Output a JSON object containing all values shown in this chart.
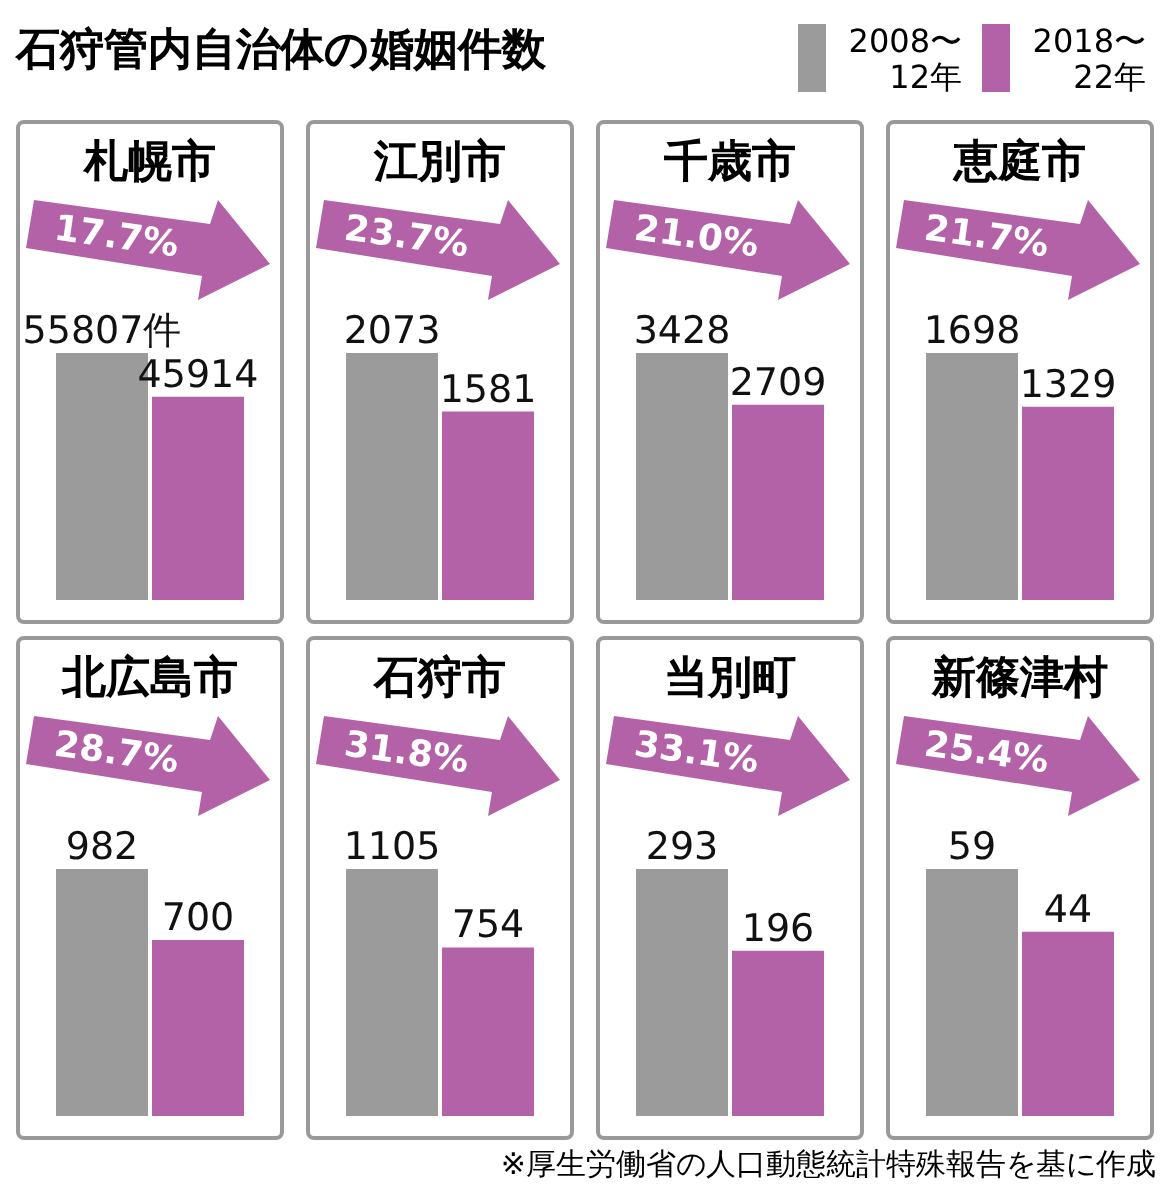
{
  "chart_data": [
    {
      "type": "other",
      "title": "石狩管内自治体の婚姻件数",
      "annotations": [
        "※厚生労働省の人口動態統計特殊報告を基に作成"
      ]
    },
    {
      "type": "bar",
      "title": "札幌市",
      "categories": [
        null
      ],
      "legend": "top right",
      "data_labels": true,
      "annotations": [
        "17.7%"
      ],
      "series": [
        {
          "name": "2008〜12年",
          "color": "#9b9b9b",
          "values": [
            55807
          ],
          "value_labels": [
            "55807件"
          ]
        },
        {
          "name": "2018〜22年",
          "color": "#b462a8",
          "values": [
            45914
          ]
        }
      ]
    },
    {
      "type": "bar",
      "title": "江別市",
      "categories": [
        null
      ],
      "data_labels": true,
      "annotations": [
        "23.7%"
      ],
      "series": [
        {
          "color": "#9b9b9b",
          "values": [
            2073
          ]
        },
        {
          "color": "#b462a8",
          "values": [
            1581
          ]
        }
      ]
    },
    {
      "type": "bar",
      "title": "千歳市",
      "categories": [
        null
      ],
      "data_labels": true,
      "annotations": [
        "21.0%"
      ],
      "series": [
        {
          "color": "#9b9b9b",
          "values": [
            3428
          ]
        },
        {
          "color": "#b462a8",
          "values": [
            2709
          ]
        }
      ]
    },
    {
      "type": "bar",
      "title": "恵庭市",
      "categories": [
        null
      ],
      "data_labels": true,
      "annotations": [
        "21.7%"
      ],
      "series": [
        {
          "color": "#9b9b9b",
          "values": [
            1698
          ]
        },
        {
          "color": "#b462a8",
          "values": [
            1329
          ]
        }
      ]
    },
    {
      "type": "bar",
      "title": "北広島市",
      "categories": [
        null
      ],
      "data_labels": true,
      "annotations": [
        "28.7%"
      ],
      "series": [
        {
          "color": "#9b9b9b",
          "values": [
            982
          ]
        },
        {
          "color": "#b462a8",
          "values": [
            700
          ]
        }
      ]
    },
    {
      "type": "bar",
      "title": "石狩市",
      "categories": [
        null
      ],
      "data_labels": true,
      "annotations": [
        "31.8%"
      ],
      "series": [
        {
          "color": "#9b9b9b",
          "values": [
            1105
          ]
        },
        {
          "color": "#b462a8",
          "values": [
            754
          ]
        }
      ]
    },
    {
      "type": "bar",
      "title": "当別町",
      "categories": [
        null
      ],
      "data_labels": true,
      "annotations": [
        "33.1%"
      ],
      "series": [
        {
          "color": "#9b9b9b",
          "values": [
            293
          ]
        },
        {
          "color": "#b462a8",
          "values": [
            196
          ]
        }
      ]
    },
    {
      "type": "bar",
      "title": "新篠津村",
      "categories": [
        null
      ],
      "data_labels": true,
      "annotations": [
        "25.4%"
      ],
      "series": [
        {
          "color": "#9b9b9b",
          "values": [
            59
          ]
        },
        {
          "color": "#b462a8",
          "values": [
            44
          ]
        }
      ]
    }
  ]
}
